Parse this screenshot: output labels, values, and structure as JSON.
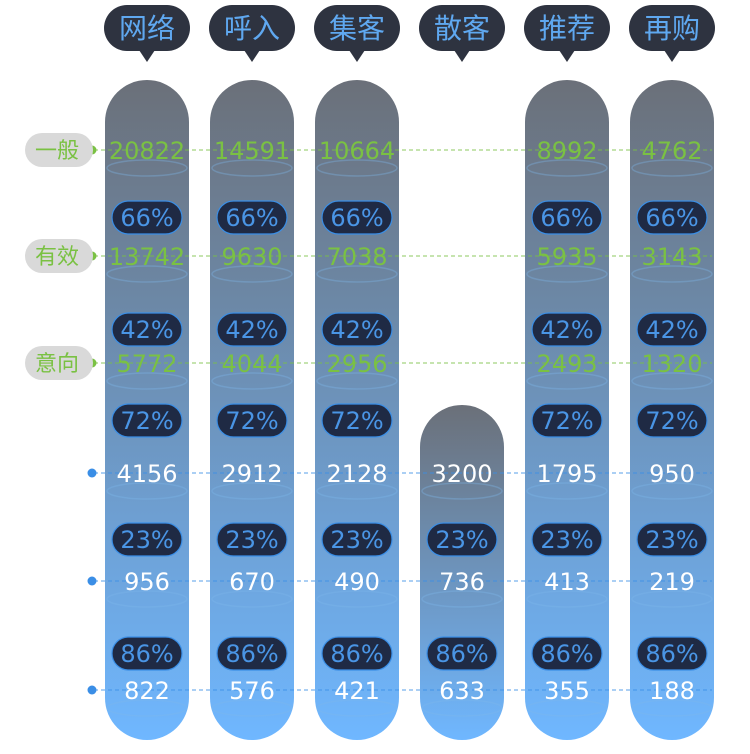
{
  "chart_data": {
    "type": "funnel-columns",
    "categories": [
      "网络",
      "呼入",
      "集客",
      "散客",
      "推荐",
      "再购"
    ],
    "row_labels": [
      "一般",
      "有效",
      "意向",
      "",
      "",
      ""
    ],
    "rows": [
      [
        20822,
        14591,
        10664,
        null,
        8992,
        4762
      ],
      [
        13742,
        9630,
        7038,
        null,
        5935,
        3143
      ],
      [
        5772,
        4044,
        2956,
        null,
        2493,
        1320
      ],
      [
        4156,
        2912,
        2128,
        3200,
        1795,
        950
      ],
      [
        956,
        670,
        490,
        736,
        413,
        219
      ],
      [
        822,
        576,
        421,
        633,
        355,
        188
      ]
    ],
    "conversion_rates": [
      [
        "66%",
        "66%",
        "66%",
        null,
        "66%",
        "66%"
      ],
      [
        "42%",
        "42%",
        "42%",
        null,
        "42%",
        "42%"
      ],
      [
        "72%",
        "72%",
        "72%",
        null,
        "72%",
        "72%"
      ],
      [
        "23%",
        "23%",
        "23%",
        "23%",
        "23%",
        "23%"
      ],
      [
        "86%",
        "86%",
        "86%",
        "86%",
        "86%",
        "86%"
      ]
    ],
    "colors": {
      "column_top": "#6b7079",
      "column_bottom": "#6fb7ff",
      "header_bubble": "#2e3340",
      "header_text": "#5fa8f0",
      "green": "#7ac143",
      "blue": "#3a8ee6",
      "pill": "#1f2a44",
      "pill_border": "#3a8ee6",
      "row_label_bg": "#d9d9d9"
    }
  }
}
